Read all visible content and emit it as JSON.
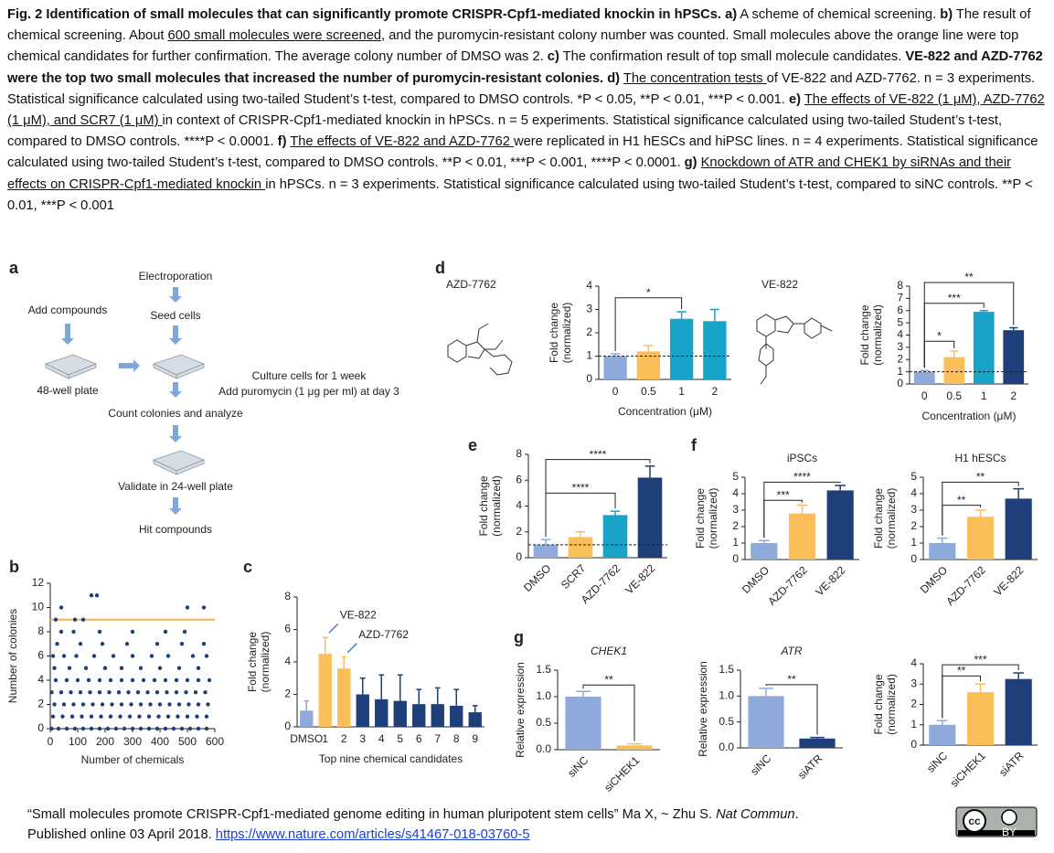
{
  "caption": [
    {
      "text": "Fig. 2  Identification of small molecules that can significantly promote CRISPR-Cpf1-mediated knockin in hPSCs. a)",
      "style": "b"
    },
    {
      "text": " A scheme of chemical screening. "
    },
    {
      "text": "b)",
      "style": "b"
    },
    {
      "text": " The result of chemical screening. About "
    },
    {
      "text": "600 small molecules were screened",
      "style": "u"
    },
    {
      "text": ", and the puromycin-resistant colony number was counted. Small molecules above the orange line were top chemical candidates for further confirmation. The average colony number of DMSO was 2. "
    },
    {
      "text": "c)",
      "style": "b"
    },
    {
      "text": " The confirmation result of top small molecule candidates. "
    },
    {
      "text": "VE-822 and AZD-7762 were the top two small molecules that increased the number of puromycin-resistant colonies. d)",
      "style": "b"
    },
    {
      "text": " "
    },
    {
      "text": "The concentration tests ",
      "style": "u"
    },
    {
      "text": "of VE-822 and AZD-7762. n = 3 experiments. Statistical significance calculated using two-tailed Student’s t-test, compared to DMSO controls. *P < 0.05, **P < 0.01, ***P < 0.001. "
    },
    {
      "text": "e)",
      "style": "b"
    },
    {
      "text": " "
    },
    {
      "text": "The effects of VE-822 (1 μM), AZD-7762 (1 μM), and SCR7 (1 μM) ",
      "style": "u"
    },
    {
      "text": "in context of CRISPR-Cpf1-mediated knockin in hPSCs. n = 5 experiments. Statistical significance calculated using two-tailed Student’s t-test, compared to DMSO controls. ****P < 0.0001. "
    },
    {
      "text": "f)",
      "style": "b"
    },
    {
      "text": " "
    },
    {
      "text": "The effects of VE-822 and AZD-7762 ",
      "style": "u"
    },
    {
      "text": "were replicated in H1 hESCs and hiPSC lines. n = 4 experiments. Statistical significance calculated using two-tailed Student’s t-test, compared to DMSO controls. **P < 0.01, ***P < 0.001, ****P < 0.0001. "
    },
    {
      "text": "g)",
      "style": "b"
    },
    {
      "text": " "
    },
    {
      "text": "Knockdown of ATR and CHEK1 by siRNAs and their effects on CRISPR-Cpf1-mediated knockin ",
      "style": "u"
    },
    {
      "text": "in hPSCs. n = 3 experiments. Statistical significance calculated using two-tailed Student’s t-test, compared to siNC controls. **P < 0.01, ***P < 0.001"
    }
  ],
  "panel_labels": [
    "a",
    "b",
    "c",
    "d",
    "e",
    "f",
    "g"
  ],
  "scheme": {
    "steps": [
      "Electroporation",
      "Add compounds",
      "Seed cells",
      "48-well plate",
      "Culture cells for 1 week",
      "Add puromycin (1 μg per ml) at day 3",
      "Count colonies and analyze",
      "Validate in 24-well plate",
      "Hit compounds"
    ]
  },
  "molecules": [
    "AZD-7762",
    "VE-822"
  ],
  "chart_data": [
    {
      "type": "scatter",
      "xlabel": "Number of chemicals",
      "ylabel": [
        "Number of colonies"
      ],
      "xlim": [
        0,
        600
      ],
      "ylim": [
        0,
        12
      ],
      "xticks": [
        0,
        100,
        200,
        300,
        400,
        500,
        600
      ],
      "yticks": [
        0,
        2,
        4,
        6,
        8,
        10,
        12
      ],
      "color": "#1f3f7a",
      "threshold": 9,
      "threshold_color": "#f7b24a",
      "x": [
        5,
        30,
        60,
        90,
        120,
        150,
        180,
        210,
        240,
        270,
        300,
        330,
        360,
        390,
        420,
        450,
        480,
        510,
        540,
        570,
        10,
        45,
        80,
        115,
        150,
        185,
        220,
        255,
        290,
        325,
        360,
        395,
        430,
        465,
        500,
        535,
        570,
        15,
        50,
        85,
        120,
        155,
        190,
        225,
        260,
        295,
        330,
        365,
        400,
        435,
        470,
        505,
        540,
        575,
        5,
        40,
        75,
        110,
        145,
        180,
        215,
        250,
        285,
        320,
        355,
        390,
        425,
        460,
        495,
        530,
        565,
        20,
        60,
        100,
        140,
        180,
        220,
        260,
        300,
        340,
        380,
        420,
        460,
        500,
        540,
        580,
        15,
        70,
        130,
        200,
        260,
        330,
        400,
        470,
        540,
        10,
        50,
        95,
        160,
        230,
        300,
        370,
        430,
        520,
        570,
        25,
        110,
        190,
        280,
        390,
        480,
        560,
        40,
        85,
        180,
        300,
        420,
        490,
        20,
        90,
        120,
        40,
        500,
        560,
        150,
        170
      ],
      "values": [
        0,
        0,
        0,
        0,
        0,
        0,
        0,
        0,
        0,
        0,
        0,
        0,
        0,
        0,
        0,
        0,
        0,
        0,
        0,
        0,
        1,
        1,
        1,
        1,
        1,
        1,
        1,
        1,
        1,
        1,
        1,
        1,
        1,
        1,
        1,
        1,
        1,
        2,
        2,
        2,
        2,
        2,
        2,
        2,
        2,
        2,
        2,
        2,
        2,
        2,
        2,
        2,
        2,
        2,
        3,
        3,
        3,
        3,
        3,
        3,
        3,
        3,
        3,
        3,
        3,
        3,
        3,
        3,
        3,
        3,
        3,
        4,
        4,
        4,
        4,
        4,
        4,
        4,
        4,
        4,
        4,
        4,
        4,
        4,
        4,
        4,
        5,
        5,
        5,
        5,
        5,
        5,
        5,
        5,
        5,
        6,
        6,
        6,
        6,
        6,
        6,
        6,
        6,
        6,
        6,
        7,
        7,
        7,
        7,
        7,
        7,
        7,
        8,
        8,
        8,
        8,
        8,
        8,
        9,
        9,
        9,
        10,
        10,
        10,
        11,
        11
      ]
    },
    {
      "type": "bar",
      "ylabel": [
        "Fold change",
        "(normalized)"
      ],
      "xlabel": "Top nine chemical candidates",
      "categories": [
        "DMSO",
        "1",
        "2",
        "3",
        "4",
        "5",
        "6",
        "7",
        "8",
        "9"
      ],
      "values": [
        1,
        4.5,
        3.6,
        2.0,
        1.7,
        1.6,
        1.4,
        1.4,
        1.3,
        0.9
      ],
      "errors": [
        0.6,
        1.0,
        0.7,
        1.0,
        1.5,
        1.6,
        0.9,
        1.0,
        1.0,
        0.4
      ],
      "colors": [
        "#8eaadb",
        "#fbbf5a",
        "#fbbf5a",
        "#1f3f7a",
        "#1f3f7a",
        "#1f3f7a",
        "#1f3f7a",
        "#1f3f7a",
        "#1f3f7a",
        "#1f3f7a"
      ],
      "ylim": [
        0,
        8
      ],
      "yticks": [
        0,
        2,
        4,
        6,
        8
      ],
      "annotations": [
        {
          "text": "VE-822",
          "category": 1
        },
        {
          "text": "AZD-7762",
          "category": 2
        }
      ]
    },
    {
      "type": "bar",
      "ylabel": [
        "Fold change",
        "(normalized)"
      ],
      "xlabel": "Concentration (μM)",
      "categories": [
        "0",
        "0.5",
        "1",
        "2"
      ],
      "values": [
        1,
        1.2,
        2.6,
        2.5
      ],
      "errors": [
        0.1,
        0.25,
        0.3,
        0.5
      ],
      "colors": [
        "#8eaadb",
        "#fbbf5a",
        "#1aa3c9",
        "#1aa3c9"
      ],
      "ylim": [
        0,
        4
      ],
      "yticks": [
        0,
        1,
        2,
        3,
        4
      ],
      "reference_line": 1,
      "significance": [
        {
          "from": 0,
          "to": 2,
          "label": "*",
          "level": 3.5
        }
      ]
    },
    {
      "type": "bar",
      "ylabel": [
        "Fold change",
        "(normalized)"
      ],
      "xlabel": "Concentration (μM)",
      "categories": [
        "0",
        "0.5",
        "1",
        "2"
      ],
      "values": [
        1,
        2.2,
        5.9,
        4.4
      ],
      "errors": [
        0.1,
        0.5,
        0.1,
        0.2
      ],
      "colors": [
        "#8eaadb",
        "#fbbf5a",
        "#1aa3c9",
        "#1f3f7a"
      ],
      "ylim": [
        0,
        8
      ],
      "yticks": [
        0,
        1,
        2,
        3,
        4,
        5,
        6,
        7,
        8
      ],
      "reference_line": 1,
      "significance": [
        {
          "from": 0,
          "to": 1,
          "label": "*",
          "level": 3.5
        },
        {
          "from": 0,
          "to": 2,
          "label": "***",
          "level": 6.6
        },
        {
          "from": 0,
          "to": 3,
          "label": "**",
          "level": 8.3
        }
      ]
    },
    {
      "type": "bar",
      "ylabel": [
        "Fold change",
        "(normalized)"
      ],
      "categories": [
        "DMSO",
        "SCR7",
        "AZD-7762",
        "VE-822"
      ],
      "values": [
        1,
        1.6,
        3.3,
        6.2
      ],
      "errors": [
        0.4,
        0.4,
        0.3,
        0.9
      ],
      "colors": [
        "#8eaadb",
        "#fbbf5a",
        "#1aa3c9",
        "#1f3f7a"
      ],
      "ylim": [
        0,
        8
      ],
      "yticks": [
        0,
        2,
        4,
        6,
        8
      ],
      "reference_line": 1,
      "rotate_labels": true,
      "significance": [
        {
          "from": 0,
          "to": 2,
          "label": "****",
          "level": 5.0
        },
        {
          "from": 0,
          "to": 3,
          "label": "****",
          "level": 7.6
        }
      ]
    },
    {
      "type": "bar",
      "title": "iPSCs",
      "ylabel": [
        "Fold change",
        "(normalized)"
      ],
      "categories": [
        "DMSO",
        "AZD-7762",
        "VE-822"
      ],
      "values": [
        1,
        2.8,
        4.2
      ],
      "errors": [
        0.15,
        0.5,
        0.3
      ],
      "colors": [
        "#8eaadb",
        "#fbbf5a",
        "#1f3f7a"
      ],
      "ylim": [
        0,
        5
      ],
      "yticks": [
        0,
        1,
        2,
        3,
        4,
        5
      ],
      "rotate_labels": true,
      "significance": [
        {
          "from": 0,
          "to": 1,
          "label": "***",
          "level": 3.6
        },
        {
          "from": 0,
          "to": 2,
          "label": "****",
          "level": 4.7
        }
      ]
    },
    {
      "type": "bar",
      "title": "H1 hESCs",
      "ylabel": [
        "Fold change",
        "(normalized)"
      ],
      "categories": [
        "DMSO",
        "AZD-7762",
        "VE-822"
      ],
      "values": [
        1,
        2.6,
        3.7
      ],
      "errors": [
        0.3,
        0.4,
        0.6
      ],
      "colors": [
        "#8eaadb",
        "#fbbf5a",
        "#1f3f7a"
      ],
      "ylim": [
        0,
        5
      ],
      "yticks": [
        0,
        1,
        2,
        3,
        4,
        5
      ],
      "rotate_labels": true,
      "significance": [
        {
          "from": 0,
          "to": 1,
          "label": "**",
          "level": 3.3
        },
        {
          "from": 0,
          "to": 2,
          "label": "**",
          "level": 4.7
        }
      ]
    },
    {
      "type": "bar",
      "title": "CHEK1",
      "title_style": "italic",
      "ylabel": [
        "Relative expression"
      ],
      "categories": [
        "siNC",
        "siCHEK1"
      ],
      "values": [
        1.0,
        0.08
      ],
      "errors": [
        0.1,
        0.03
      ],
      "colors": [
        "#8eaadb",
        "#fbbf5a"
      ],
      "ylim": [
        0,
        1.5
      ],
      "yticks": [
        {
          "value": 0,
          "label": "0.0"
        },
        0.5,
        {
          "value": 1,
          "label": "1.0"
        },
        1.5
      ],
      "rotate_labels": true,
      "significance": [
        {
          "from": 0,
          "to": 1,
          "label": "**",
          "level": 1.22
        }
      ]
    },
    {
      "type": "bar",
      "title": "ATR",
      "title_style": "italic",
      "ylabel": [
        "Relative expression"
      ],
      "categories": [
        "siNC",
        "siATR"
      ],
      "values": [
        1.0,
        0.18
      ],
      "errors": [
        0.15,
        0.02
      ],
      "colors": [
        "#8eaadb",
        "#1f3f7a"
      ],
      "ylim": [
        0,
        1.5
      ],
      "yticks": [
        {
          "value": 0,
          "label": "0.0"
        },
        0.5,
        {
          "value": 1,
          "label": "1.0"
        },
        1.5
      ],
      "rotate_labels": true,
      "significance": [
        {
          "from": 0,
          "to": 1,
          "label": "**",
          "level": 1.22
        }
      ]
    },
    {
      "type": "bar",
      "ylabel": [
        "Fold change",
        "(normalized)"
      ],
      "categories": [
        "siNC",
        "siCHEK1",
        "siATR"
      ],
      "values": [
        1,
        2.6,
        3.25
      ],
      "errors": [
        0.2,
        0.4,
        0.3
      ],
      "colors": [
        "#8eaadb",
        "#fbbf5a",
        "#1f3f7a"
      ],
      "ylim": [
        0,
        4
      ],
      "yticks": [
        0,
        1,
        2,
        3,
        4
      ],
      "rotate_labels": true,
      "significance": [
        {
          "from": 0,
          "to": 1,
          "label": "**",
          "level": 3.4
        },
        {
          "from": 0,
          "to": 2,
          "label": "***",
          "level": 3.95
        }
      ]
    }
  ],
  "footer": {
    "lines": [
      [
        {
          "text": "“Small molecules promote CRISPR-Cpf1-mediated genome editing in human pluripotent stem cells” Ma X, ~ Zhu S. "
        },
        {
          "text": "Nat Commun",
          "style": "i"
        },
        {
          "text": "."
        }
      ],
      [
        {
          "text": "Published online 03 April 2018.  "
        },
        {
          "text": "https://www.nature.com/articles/s41467-018-03760-5",
          "style": "link"
        }
      ]
    ],
    "badge": [
      "cc",
      "BY"
    ]
  }
}
